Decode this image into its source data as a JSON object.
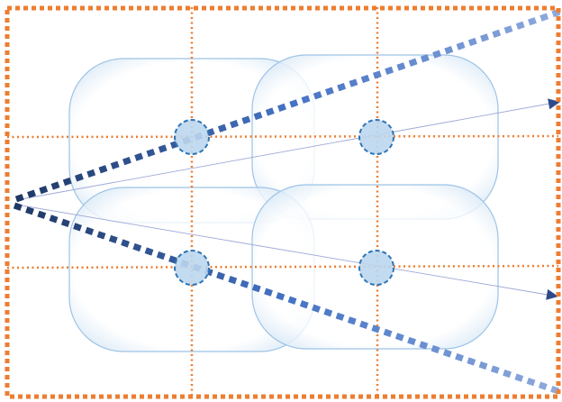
{
  "diagram": {
    "colors": {
      "frame": "#ED7D31",
      "grid": "#ED7D31",
      "cell_stroke": "#9DC3E6",
      "cell_fill_edge": "#DDEBF7",
      "node_fill": "#BDD7EE",
      "node_stroke": "#2E75B6",
      "ray_dark": "#1F3864",
      "ray_mid": "#4472C4",
      "ray_light": "#8FAADC",
      "thin_arrow": "#9DA9D6",
      "arrowhead": "#2F4A8A"
    },
    "grid": {
      "columns": 3,
      "rows": 3
    },
    "cells": [
      {
        "name": "top-left"
      },
      {
        "name": "top-right"
      },
      {
        "name": "bottom-left"
      },
      {
        "name": "bottom-right"
      }
    ],
    "nodes": [
      {
        "name": "top-left"
      },
      {
        "name": "top-right"
      },
      {
        "name": "bottom-left"
      },
      {
        "name": "bottom-right"
      }
    ],
    "rays": [
      {
        "name": "upper-ray"
      },
      {
        "name": "lower-ray"
      }
    ],
    "arrows": [
      {
        "name": "upper-arrow"
      },
      {
        "name": "lower-arrow"
      }
    ]
  }
}
